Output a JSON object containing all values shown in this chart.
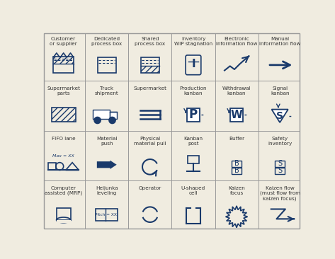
{
  "bg_color": "#f0ece0",
  "line_color": "#1a3a6b",
  "border_color": "#999999",
  "label_color": "#333333",
  "row_labels": [
    [
      "Customer\nor supplier",
      "Dedicated\nprocess box",
      "Shared\nprocess box",
      "Inventory\nWIP stagnation",
      "Electronic\ninformation flow",
      "Manual\ninformation flow"
    ],
    [
      "Supermarket\nparts",
      "Truck\nshipment",
      "Supermarket",
      "Production\nkanban",
      "Withdrawal\nkanban",
      "Signal\nkanban"
    ],
    [
      "FIFO lane",
      "Material\npush",
      "Physical\nmaterial pull",
      "Kanban\npost",
      "Buffer",
      "Safety\ninventory"
    ],
    [
      "Computer\nassisted (MRP)",
      "Heijunka\nleveling",
      "Operator",
      "U-shaped\ncell",
      "Kaizen\nfocus",
      "Kaizen flow\n(must flow from\nkaizen focus)"
    ]
  ],
  "label_fontsize": 5.2,
  "symbol_color": "#1a3a6b"
}
